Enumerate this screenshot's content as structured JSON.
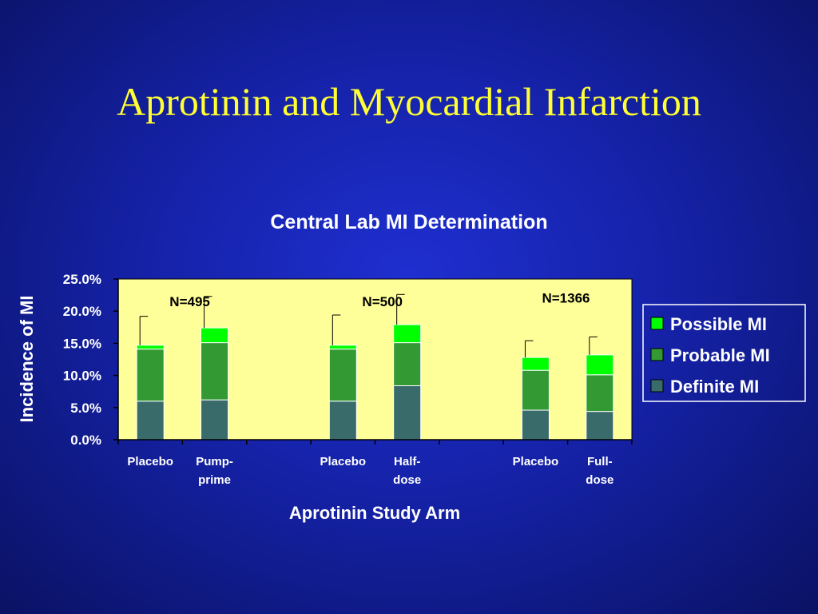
{
  "slide": {
    "title": "Aprotinin and Myocardial Infarction"
  },
  "colors": {
    "definite": "#3a6b6b",
    "probable": "#339933",
    "possible": "#00ff00",
    "plot_bg": "#ffff99"
  },
  "chart_data": {
    "type": "bar",
    "stacked": true,
    "title": "Central Lab MI Determination",
    "xlabel": "Aprotinin Study Arm",
    "ylabel": "Incidence of MI",
    "ylim": [
      0,
      25
    ],
    "yticks": [
      "0.0%",
      "5.0%",
      "10.0%",
      "15.0%",
      "20.0%",
      "25.0%"
    ],
    "categories": [
      [
        "Placebo"
      ],
      [
        "Pump-",
        "prime"
      ],
      [
        ""
      ],
      [
        "Placebo"
      ],
      [
        "Half-",
        "dose"
      ],
      [
        ""
      ],
      [
        "Placebo"
      ],
      [
        "Full-",
        "dose"
      ]
    ],
    "series": [
      {
        "name": "Definite MI",
        "values": [
          6.0,
          6.2,
          null,
          6.0,
          8.4,
          null,
          4.6,
          4.4
        ]
      },
      {
        "name": "Probable MI",
        "values": [
          8.1,
          8.9,
          null,
          8.1,
          6.7,
          null,
          6.2,
          5.7
        ]
      },
      {
        "name": "Possible MI",
        "values": [
          0.6,
          2.3,
          null,
          0.6,
          2.8,
          null,
          2.0,
          3.1
        ]
      }
    ],
    "error_tops": [
      19.2,
      22.3,
      null,
      19.4,
      22.6,
      null,
      15.4,
      16.0
    ],
    "annotations": [
      {
        "text": "N=495",
        "category": 0.8,
        "y": 20.8
      },
      {
        "text": "N=500",
        "category": 3.8,
        "y": 20.8
      },
      {
        "text": "N=1366",
        "category": 6.6,
        "y": 21.3
      }
    ],
    "legend": {
      "position": "right",
      "order": [
        "Possible MI",
        "Probable MI",
        "Definite MI"
      ]
    }
  }
}
